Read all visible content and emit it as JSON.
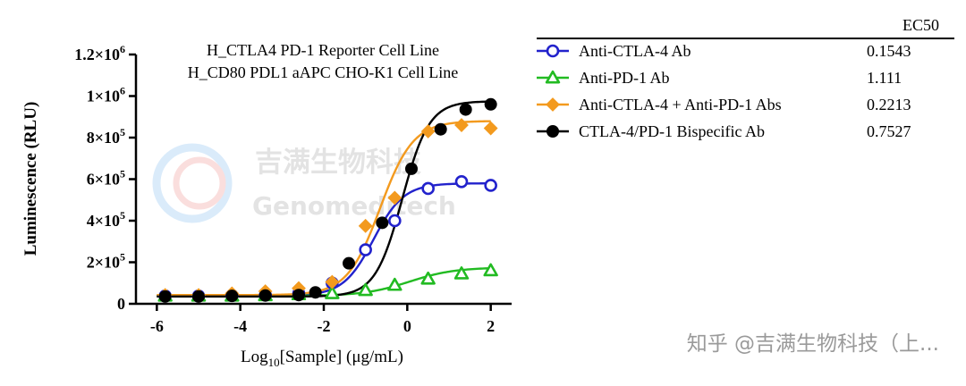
{
  "chart_data": {
    "type": "scatter",
    "title_lines": [
      "H_CTLA4 PD-1 Reporter Cell Line",
      "H_CD80 PDL1 aAPC CHO-K1 Cell Line"
    ],
    "xlabel_prefix": "Log",
    "xlabel_sub": "10",
    "xlabel_rest": "[Sample] (μg/mL)",
    "ylabel": "Luminescence (RLU)",
    "xlim": [
      -6.5,
      2.5
    ],
    "ylim": [
      0,
      1200000
    ],
    "x_ticks": [
      -6,
      -4,
      -2,
      0,
      2
    ],
    "x_tick_labels": [
      "-6",
      "-4",
      "-2",
      "0",
      "2"
    ],
    "y_ticks": [
      0,
      200000,
      400000,
      600000,
      800000,
      1000000,
      1200000
    ],
    "y_tick_labels": [
      {
        "base": "0",
        "exp": ""
      },
      {
        "base": "2×10",
        "exp": "5"
      },
      {
        "base": "4×10",
        "exp": "5"
      },
      {
        "base": "6×10",
        "exp": "5"
      },
      {
        "base": "8×10",
        "exp": "5"
      },
      {
        "base": "1×10",
        "exp": "6"
      },
      {
        "base": "1.2×10",
        "exp": "6"
      }
    ],
    "legend_header": "EC50",
    "series": [
      {
        "name": "Anti-CTLA-4 Ab",
        "ec50": "0.1543",
        "color": "#2222cc",
        "marker": "circle-open",
        "x": [
          -5.8,
          -5.0,
          -4.2,
          -3.4,
          -2.6,
          -1.8,
          -1.0,
          -0.3,
          0.5,
          1.3,
          2.0
        ],
        "y": [
          38000,
          38000,
          40000,
          42000,
          50000,
          100000,
          260000,
          400000,
          555000,
          588000,
          570000
        ],
        "fit": {
          "bottom": 38000,
          "top": 580000,
          "logec50": -0.81,
          "hill": 1.2
        }
      },
      {
        "name": "Anti-PD-1 Ab",
        "ec50": "1.111",
        "color": "#22bb22",
        "marker": "triangle-open",
        "x": [
          -5.8,
          -5.0,
          -4.2,
          -3.4,
          -2.6,
          -1.8,
          -1.0,
          -0.3,
          0.5,
          1.3,
          2.0
        ],
        "y": [
          38000,
          38000,
          38000,
          40000,
          45000,
          50000,
          65000,
          90000,
          120000,
          145000,
          160000
        ],
        "fit": {
          "bottom": 38000,
          "top": 175000,
          "logec50": 0.05,
          "hill": 0.8
        }
      },
      {
        "name": "Anti-CTLA-4 + Anti-PD-1 Abs",
        "ec50": "0.2213",
        "color": "#f39a1e",
        "marker": "diamond",
        "x": [
          -5.8,
          -5.0,
          -4.2,
          -3.4,
          -2.6,
          -1.8,
          -1.0,
          -0.3,
          0.5,
          1.3,
          2.0
        ],
        "y": [
          42000,
          42000,
          50000,
          60000,
          75000,
          105000,
          375000,
          510000,
          830000,
          860000,
          845000
        ],
        "fit": {
          "bottom": 42000,
          "top": 880000,
          "logec50": -0.65,
          "hill": 1.1
        }
      },
      {
        "name": "CTLA-4/PD-1 Bispecific Ab",
        "ec50": "0.7527",
        "color": "#000000",
        "marker": "circle-filled",
        "x": [
          -5.8,
          -5.0,
          -4.2,
          -3.4,
          -2.6,
          -2.2,
          -1.4,
          -0.6,
          0.1,
          0.8,
          1.4,
          2.0
        ],
        "y": [
          35000,
          35000,
          38000,
          40000,
          42000,
          55000,
          195000,
          390000,
          650000,
          840000,
          935000,
          960000
        ],
        "fit": {
          "bottom": 35000,
          "top": 975000,
          "logec50": -0.12,
          "hill": 1.35
        }
      }
    ]
  },
  "watermark": {
    "cn": "吉满生物科技",
    "en": "Genomeditech"
  },
  "footer_caption": "知乎 @吉满生物科技（上..."
}
